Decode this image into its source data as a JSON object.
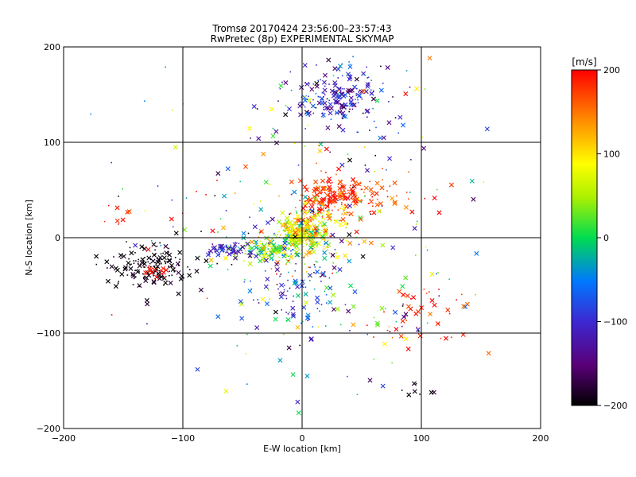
{
  "chart_data": {
    "type": "scatter",
    "title": "Tromsø 20170424 23:56:00–23:57:43",
    "subtitle": "RwPretec (8p) EXPERIMENTAL SKYMAP",
    "xlabel": "E-W location [km]",
    "ylabel": "N-S location [km]",
    "xlim": [
      -200,
      200
    ],
    "ylim": [
      -200,
      200
    ],
    "xticks": [
      -200,
      -100,
      0,
      100,
      200
    ],
    "yticks": [
      -200,
      -100,
      0,
      100,
      200
    ],
    "grid": true,
    "colorbar": {
      "label": "[m/s]",
      "range": [
        -200,
        200
      ],
      "ticks": [
        200,
        100,
        0,
        -100,
        -200
      ],
      "colormap": "black-purple-blue-cyan-green-yellow-orange-red"
    },
    "markers": {
      "x": "large cross marker",
      "dot": "small point marker"
    },
    "clusters": [
      {
        "region": "north",
        "cx": 28,
        "cy": 148,
        "sx": 18,
        "sy": 14,
        "v": -110,
        "vs": 35,
        "n": 170
      },
      {
        "region": "north-spread",
        "cx": 35,
        "cy": 140,
        "sx": 40,
        "sy": 30,
        "v": -90,
        "vs": 90,
        "n": 60
      },
      {
        "region": "northeast-red",
        "cx": 28,
        "cy": 42,
        "sx": 15,
        "sy": 9,
        "v": 185,
        "vs": 15,
        "n": 150
      },
      {
        "region": "northeast-red-spread",
        "cx": 45,
        "cy": 45,
        "sx": 30,
        "sy": 15,
        "v": 170,
        "vs": 25,
        "n": 70
      },
      {
        "region": "central-band",
        "cx": 15,
        "cy": 10,
        "sx": 15,
        "sy": 18,
        "v": 100,
        "vs": 50,
        "n": 140
      },
      {
        "region": "center",
        "cx": 0,
        "cy": 5,
        "sx": 10,
        "sy": 8,
        "v": 70,
        "vs": 50,
        "n": 220
      },
      {
        "region": "center-west",
        "cx": -25,
        "cy": -12,
        "sx": 14,
        "sy": 6,
        "v": 30,
        "vs": 45,
        "n": 140
      },
      {
        "region": "south-center-blue",
        "cx": -5,
        "cy": -50,
        "sx": 22,
        "sy": 25,
        "v": -70,
        "vs": 50,
        "n": 130
      },
      {
        "region": "west-blue",
        "cx": -60,
        "cy": -12,
        "sx": 10,
        "sy": 5,
        "v": -110,
        "vs": 25,
        "n": 45
      },
      {
        "region": "west-black",
        "cx": -125,
        "cy": -30,
        "sx": 17,
        "sy": 10,
        "v": -195,
        "vs": 10,
        "n": 160
      },
      {
        "region": "west-red",
        "cx": -122,
        "cy": -35,
        "sx": 5,
        "sy": 3,
        "v": 195,
        "vs": 6,
        "n": 18
      },
      {
        "region": "northwest-red",
        "cx": -145,
        "cy": 20,
        "sx": 15,
        "sy": 12,
        "v": 190,
        "vs": 12,
        "n": 10
      },
      {
        "region": "southeast-red",
        "cx": 105,
        "cy": -85,
        "sx": 22,
        "sy": 22,
        "v": 185,
        "vs": 15,
        "n": 35
      },
      {
        "region": "southeast-mixed",
        "cx": 80,
        "cy": -80,
        "sx": 15,
        "sy": 18,
        "v": 0,
        "vs": 150,
        "n": 25
      },
      {
        "region": "southeast-black",
        "cx": 95,
        "cy": -158,
        "sx": 8,
        "sy": 6,
        "v": -195,
        "vs": 8,
        "n": 8
      },
      {
        "region": "background",
        "cx": 0,
        "cy": 0,
        "sx": 75,
        "sy": 75,
        "v": 0,
        "vs": 140,
        "n": 220
      }
    ]
  }
}
